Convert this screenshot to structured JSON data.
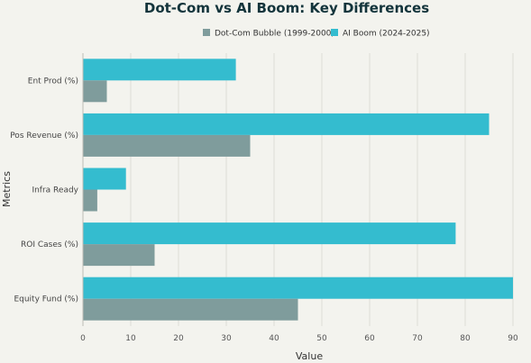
{
  "chart_data": {
    "type": "bar",
    "orientation": "horizontal",
    "title": "Dot-Com vs AI Boom: Key Differences",
    "xlabel": "Value",
    "ylabel": "Metrics",
    "categories": [
      "Ent Prod (%)",
      "Pos Revenue (%)",
      "Infra Ready",
      "ROI Cases (%)",
      "Equity Fund (%)"
    ],
    "series": [
      {
        "name": "Dot-Com Bubble (1999-2000)",
        "color": "#7f9c9c",
        "values": [
          5,
          35,
          3,
          15,
          45
        ]
      },
      {
        "name": "AI Boom (2024-2025)",
        "color": "#34bccf",
        "values": [
          32,
          85,
          9,
          78,
          90
        ]
      }
    ],
    "xlim": [
      0,
      90
    ],
    "xticks": [
      "0",
      "10",
      "20",
      "30",
      "40",
      "50",
      "60",
      "70",
      "80",
      "90"
    ],
    "grid": true,
    "legend_position": "top-center"
  }
}
